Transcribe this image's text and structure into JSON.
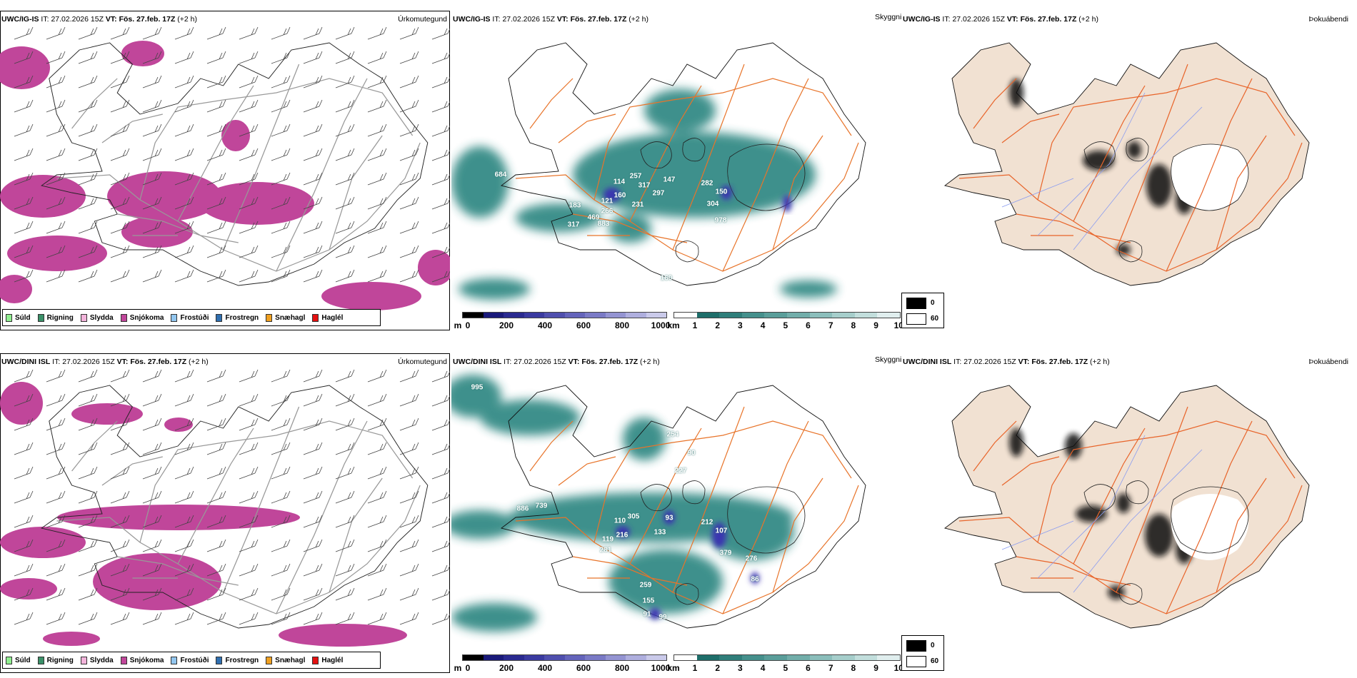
{
  "rows": [
    {
      "model": "UWC/IG-IS",
      "it_label": "IT:",
      "it_value": "27.02.2026 15Z",
      "vt_label": "VT:",
      "vt_value": "Fös. 27.feb. 17Z",
      "lead": "(+2 h)",
      "mid_labels": [
        "684",
        "114",
        "257",
        "317",
        "147",
        "160",
        "121",
        "297",
        "231",
        "282",
        "150",
        "304",
        "183",
        "266",
        "469",
        "883",
        "317",
        "978",
        "160"
      ]
    },
    {
      "model": "UWC/DINI ISL",
      "it_label": "IT:",
      "it_value": "27.02.2026 15Z",
      "vt_label": "VT:",
      "vt_value": "Fös. 27.feb. 17Z",
      "lead": "(+2 h)",
      "mid_labels": [
        "995",
        "254",
        "90",
        "227",
        "886",
        "739",
        "110",
        "305",
        "93",
        "212",
        "107",
        "216",
        "119",
        "133",
        "281",
        "379",
        "276",
        "86",
        "259",
        "155",
        "91",
        "99"
      ]
    }
  ],
  "panel_titles": {
    "precip": "Úrkomutegund",
    "visibility": "Skyggni",
    "fog": "Þokuábendi"
  },
  "precip_legend": [
    {
      "label": "Súld",
      "color": "#90ee90"
    },
    {
      "label": "Rigning",
      "color": "#3a9068"
    },
    {
      "label": "Slydda",
      "color": "#f2b3da"
    },
    {
      "label": "Snjókoma",
      "color": "#c0469a"
    },
    {
      "label": "Frostúði",
      "color": "#92c6ef"
    },
    {
      "label": "Frostregn",
      "color": "#2f6fb0"
    },
    {
      "label": "Snæhagl",
      "color": "#f0a020"
    },
    {
      "label": "Haglél",
      "color": "#e41010"
    }
  ],
  "depth_bar": {
    "unit": "m",
    "ticks": [
      "0",
      "200",
      "400",
      "600",
      "800",
      "1000"
    ]
  },
  "vis_bar": {
    "unit": "km",
    "ticks": [
      "1",
      "2",
      "3",
      "4",
      "5",
      "6",
      "7",
      "8",
      "9",
      "10"
    ]
  },
  "fog_legend": {
    "low": "0",
    "high": "60"
  },
  "colors": {
    "snow": "#c0469a",
    "teal": "#2a8580",
    "road": "#e8742a",
    "land_fog": "#f1e1d2",
    "river": "#8a9cf0"
  }
}
